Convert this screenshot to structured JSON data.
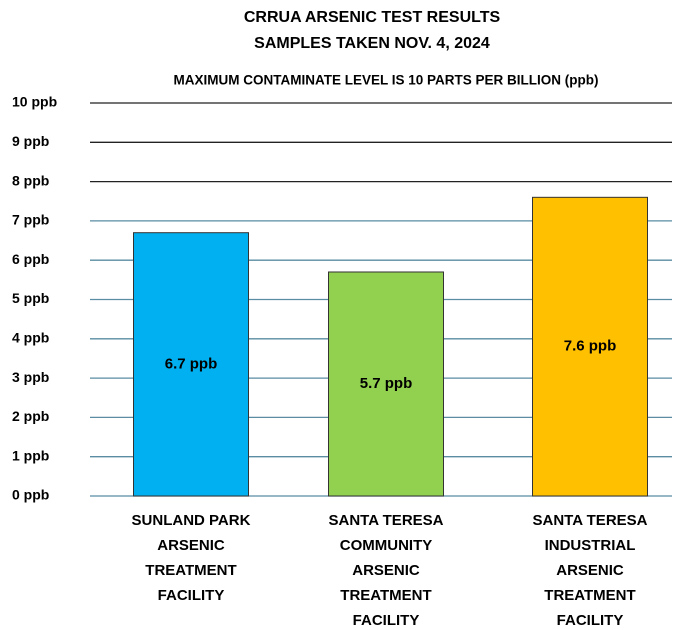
{
  "chart_data": {
    "type": "bar",
    "title": "CRRUA ARSENIC TEST RESULTS",
    "subtitle": "SAMPLES TAKEN NOV. 4, 2024",
    "annotation": "MAXIMUM CONTAMINATE LEVEL IS 10 PARTS PER BILLION (ppb)",
    "categories": [
      "SUNLAND PARK ARSENIC TREATMENT FACILITY",
      "SANTA TERESA COMMUNITY ARSENIC TREATMENT FACILITY",
      "SANTA TERESA INDUSTRIAL ARSENIC TREATMENT FACILITY"
    ],
    "values": [
      6.7,
      5.7,
      7.6
    ],
    "value_labels": [
      "6.7 ppb",
      "5.7 ppb",
      "7.6 ppb"
    ],
    "colors": [
      "#00b0f0",
      "#92d050",
      "#ffc000"
    ],
    "ylim": [
      0,
      10
    ],
    "yticks": [
      {
        "value": 0,
        "label": "0 ppb"
      },
      {
        "value": 1,
        "label": "1 ppb"
      },
      {
        "value": 2,
        "label": "2 ppb"
      },
      {
        "value": 3,
        "label": "3 ppb"
      },
      {
        "value": 4,
        "label": "4 ppb"
      },
      {
        "value": 5,
        "label": "5 ppb"
      },
      {
        "value": 6,
        "label": "6 ppb"
      },
      {
        "value": 7,
        "label": "7 ppb"
      },
      {
        "value": 8,
        "label": "8 ppb"
      },
      {
        "value": 9,
        "label": "9 ppb"
      },
      {
        "value": 10,
        "label": "10 ppb"
      }
    ],
    "grid": true
  }
}
